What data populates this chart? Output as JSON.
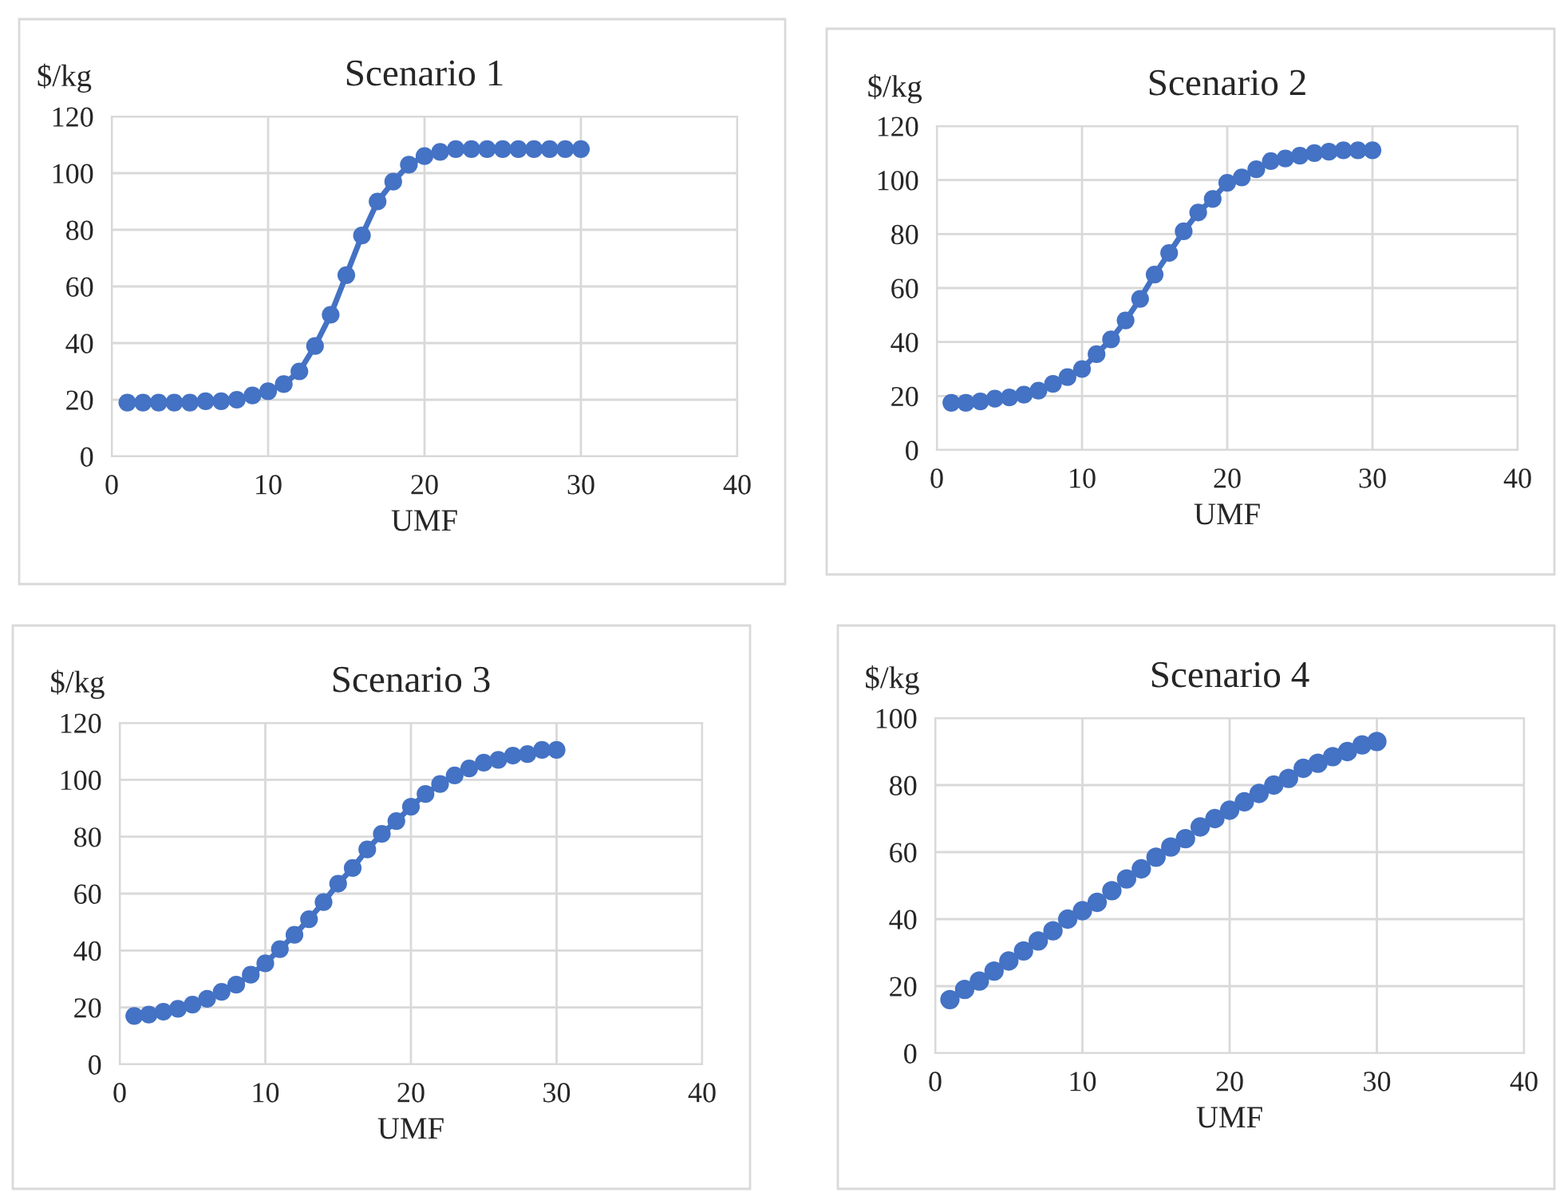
{
  "chart_data": [
    {
      "type": "line",
      "title": "Scenario 1",
      "xlabel": "UMF",
      "ylabel": "$/kg",
      "marker": "circle",
      "grid": true,
      "legend": false,
      "xlim": [
        0,
        40
      ],
      "xticks": [
        0,
        10,
        20,
        30,
        40
      ],
      "ylim": [
        0,
        120
      ],
      "yticks": [
        0,
        20,
        40,
        60,
        80,
        100,
        120
      ],
      "x": [
        1,
        2,
        3,
        4,
        5,
        6,
        7,
        8,
        9,
        10,
        11,
        12,
        13,
        14,
        15,
        16,
        17,
        18,
        19,
        20,
        21,
        22,
        23,
        24,
        25,
        26,
        27,
        28,
        29,
        30
      ],
      "series": [
        {
          "color": "#4472c4",
          "values": [
            19,
            19,
            19,
            19,
            19,
            19.5,
            19.5,
            20,
            21.5,
            23,
            25.5,
            30,
            39,
            50,
            64,
            78,
            90,
            97,
            103,
            106,
            107.5,
            108.5,
            108.5,
            108.5,
            108.5,
            108.5,
            108.5,
            108.5,
            108.5,
            108.5
          ]
        }
      ]
    },
    {
      "type": "line",
      "title": "Scenario 2",
      "xlabel": "UMF",
      "ylabel": "$/kg",
      "marker": "circle",
      "grid": true,
      "legend": false,
      "xlim": [
        0,
        40
      ],
      "xticks": [
        0,
        10,
        20,
        30,
        40
      ],
      "ylim": [
        0,
        120
      ],
      "yticks": [
        0,
        20,
        40,
        60,
        80,
        100,
        120
      ],
      "x": [
        1,
        2,
        3,
        4,
        5,
        6,
        7,
        8,
        9,
        10,
        11,
        12,
        13,
        14,
        15,
        16,
        17,
        18,
        19,
        20,
        21,
        22,
        23,
        24,
        25,
        26,
        27,
        28,
        29,
        30
      ],
      "series": [
        {
          "color": "#4472c4",
          "values": [
            17.5,
            17.5,
            18,
            19,
            19.5,
            20.5,
            22,
            24.5,
            27,
            30,
            35.5,
            41,
            48,
            56,
            65,
            73,
            81,
            88,
            93,
            99,
            101,
            104,
            107,
            108,
            109,
            110,
            110.5,
            111,
            111,
            111
          ]
        }
      ]
    },
    {
      "type": "line",
      "title": "Scenario 3",
      "xlabel": "UMF",
      "ylabel": "$/kg",
      "marker": "circle",
      "grid": true,
      "legend": false,
      "xlim": [
        0,
        40
      ],
      "xticks": [
        0,
        10,
        20,
        30,
        40
      ],
      "ylim": [
        0,
        120
      ],
      "yticks": [
        0,
        20,
        40,
        60,
        80,
        100,
        120
      ],
      "x": [
        1,
        2,
        3,
        4,
        5,
        6,
        7,
        8,
        9,
        10,
        11,
        12,
        13,
        14,
        15,
        16,
        17,
        18,
        19,
        20,
        21,
        22,
        23,
        24,
        25,
        26,
        27,
        28,
        29,
        30
      ],
      "series": [
        {
          "color": "#4472c4",
          "values": [
            17,
            17.5,
            18.5,
            19.5,
            21,
            23,
            25.5,
            28,
            31.5,
            35.5,
            40.5,
            45.5,
            51,
            57,
            63.5,
            69,
            75.5,
            81,
            85.5,
            90.5,
            95,
            98.5,
            101.5,
            104,
            106,
            107,
            108.5,
            109,
            110.5,
            110.5
          ]
        }
      ]
    },
    {
      "type": "scatter",
      "title": "Scenario 4",
      "xlabel": "UMF",
      "ylabel": "$/kg",
      "marker": "circle",
      "grid": true,
      "legend": false,
      "xlim": [
        0,
        40
      ],
      "xticks": [
        0,
        10,
        20,
        30,
        40
      ],
      "ylim": [
        0,
        100
      ],
      "yticks": [
        0,
        20,
        40,
        60,
        80,
        100
      ],
      "x": [
        1,
        2,
        3,
        4,
        5,
        6,
        7,
        8,
        9,
        10,
        11,
        12,
        13,
        14,
        15,
        16,
        17,
        18,
        19,
        20,
        21,
        22,
        23,
        24,
        25,
        26,
        27,
        28,
        29,
        30
      ],
      "series": [
        {
          "color": "#4472c4",
          "values": [
            16,
            19,
            21.5,
            24.5,
            27.5,
            30.5,
            33.5,
            36.5,
            40,
            42.5,
            45,
            48.5,
            52,
            55,
            58.5,
            61.5,
            64,
            67.5,
            70,
            72.5,
            75,
            77.5,
            80,
            82,
            85,
            86.5,
            88.5,
            90,
            92,
            93
          ]
        }
      ]
    }
  ]
}
